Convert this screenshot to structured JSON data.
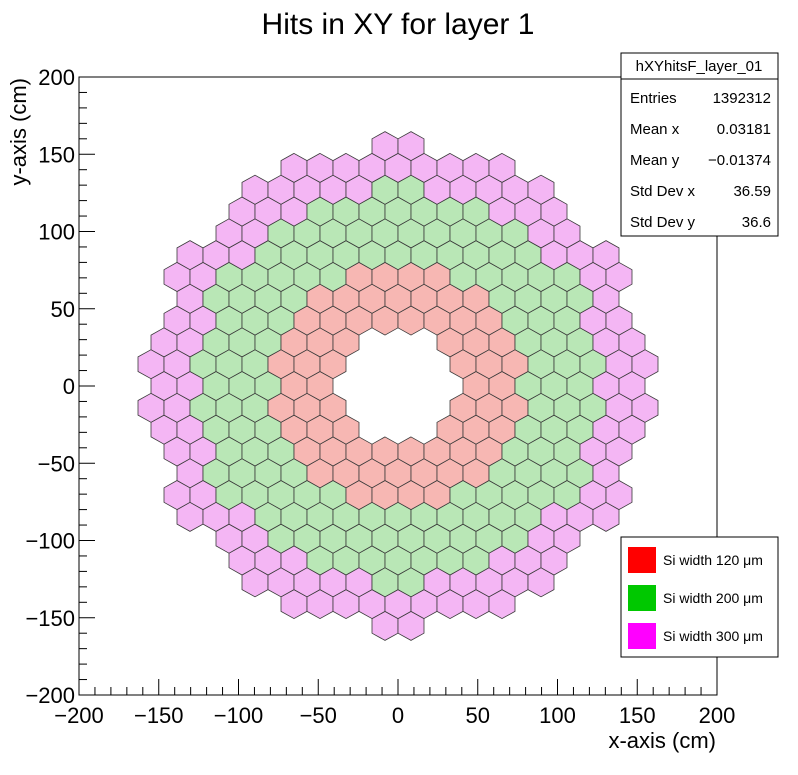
{
  "chart_data": {
    "type": "heatmap",
    "title": "Hits in XY for layer 1",
    "xlabel": "x-axis (cm)",
    "ylabel": "y-axis (cm)",
    "xlim": [
      -200,
      200
    ],
    "ylim": [
      -200,
      200
    ],
    "x_ticks": [
      {
        "value": -200,
        "label": "−200"
      },
      {
        "value": -150,
        "label": "−150"
      },
      {
        "value": -100,
        "label": "−100"
      },
      {
        "value": -50,
        "label": "−50"
      },
      {
        "value": 0,
        "label": "0"
      },
      {
        "value": 50,
        "label": "50"
      },
      {
        "value": 100,
        "label": "100"
      },
      {
        "value": 150,
        "label": "150"
      },
      {
        "value": 200,
        "label": "200"
      }
    ],
    "y_ticks": [
      {
        "value": -200,
        "label": "−200"
      },
      {
        "value": -150,
        "label": "−150"
      },
      {
        "value": -100,
        "label": "−100"
      },
      {
        "value": -50,
        "label": "−50"
      },
      {
        "value": 0,
        "label": "0"
      },
      {
        "value": 50,
        "label": "50"
      },
      {
        "value": 100,
        "label": "100"
      },
      {
        "value": 150,
        "label": "150"
      },
      {
        "value": 200,
        "label": "200"
      }
    ],
    "cell_size_cm": 16.3,
    "inner_radius_cm": 33,
    "regions": [
      {
        "name": "Si width 120 μm",
        "color": "#ff0000",
        "fill": "#f7b7b3",
        "r_min": 0,
        "r_max": 75
      },
      {
        "name": "Si width 200 μm",
        "color": "#00c800",
        "fill": "#b9e7b6",
        "r_min": 75,
        "r_max": 128
      },
      {
        "name": "Si width 300 μm",
        "color": "#ff00ff",
        "fill": "#f4b6f4",
        "r_min": 128,
        "r_max": 156
      }
    ],
    "stats": {
      "name": "hXYhitsF_layer_01",
      "rows": [
        {
          "label": "Entries",
          "value": "1392312"
        },
        {
          "label": "Mean x",
          "value": "0.03181"
        },
        {
          "label": "Mean y",
          "value": "−0.01374"
        },
        {
          "label": "Std Dev x",
          "value": "36.59"
        },
        {
          "label": "Std Dev y",
          "value": "36.6"
        }
      ]
    },
    "legend_position": "bottom-right",
    "grid": false
  }
}
